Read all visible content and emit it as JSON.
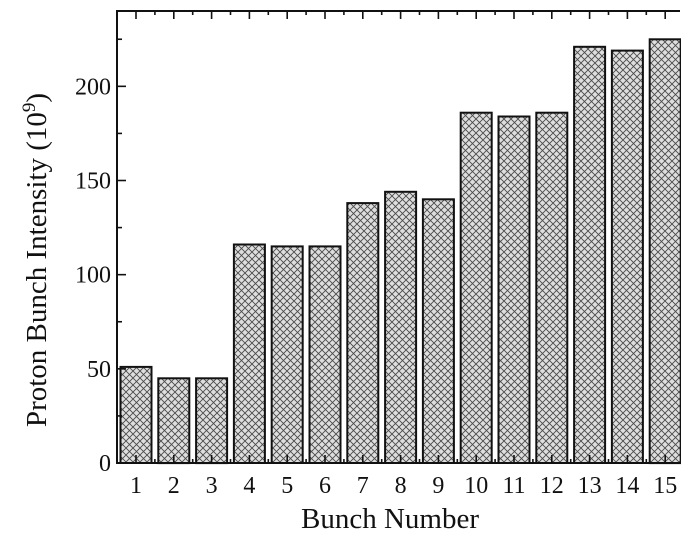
{
  "chart_data": {
    "type": "bar",
    "title": "",
    "xlabel": "Bunch Number",
    "ylabel_main": "Proton Bunch Intensity (10",
    "ylabel_exp": "9",
    "ylabel_close": ")",
    "categories": [
      "1",
      "2",
      "3",
      "4",
      "5",
      "6",
      "7",
      "8",
      "9",
      "10",
      "11",
      "12",
      "13",
      "14",
      "15"
    ],
    "values": [
      51,
      45,
      45,
      116,
      115,
      115,
      138,
      144,
      140,
      186,
      184,
      186,
      221,
      219,
      225
    ],
    "ylim": [
      0,
      240
    ],
    "yticks": [
      "0",
      "50",
      "100",
      "150",
      "200"
    ],
    "grid": false,
    "legend": "none",
    "bar_fill": "crosshatch",
    "bar_color": "#d9d9d9",
    "edge_color": "#111111"
  }
}
